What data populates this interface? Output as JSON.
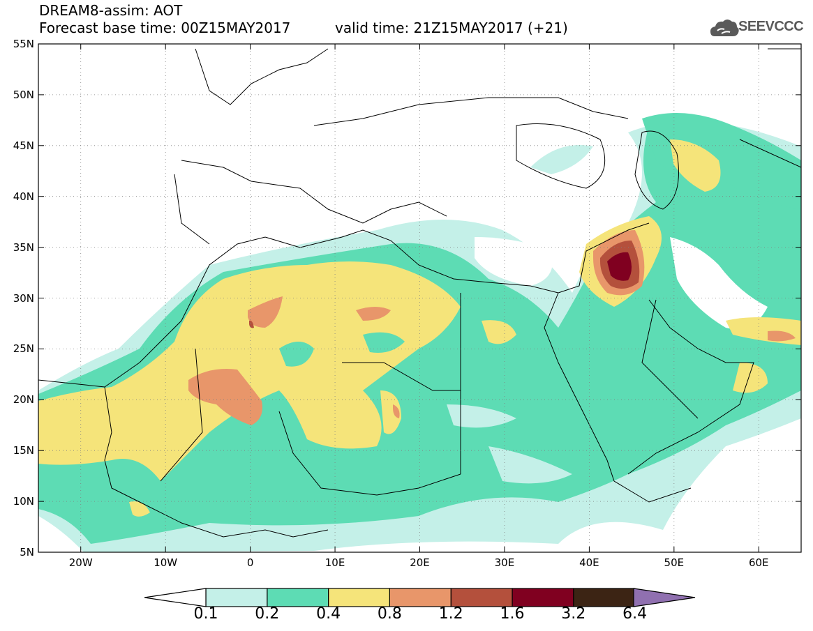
{
  "header": {
    "line1": "DREAM8-assim: AOT",
    "line2": "Forecast base time: 00Z15MAY2017",
    "line3": "valid time: 21Z15MAY2017 (+21)"
  },
  "logo": {
    "text": "SEEVCCC",
    "icon": "cloud-icon",
    "color": "#5a5a5a"
  },
  "map": {
    "lat_labels": [
      "55N",
      "50N",
      "45N",
      "40N",
      "35N",
      "30N",
      "25N",
      "20N",
      "15N",
      "10N",
      "5N"
    ],
    "lon_labels": [
      "20W",
      "10W",
      "0",
      "10E",
      "20E",
      "30E",
      "40E",
      "50E",
      "60E"
    ],
    "lat_range": [
      5,
      55
    ],
    "lon_range": [
      -25,
      65
    ],
    "grid": "dotted"
  },
  "colorbar": {
    "labels": [
      "0.1",
      "0.2",
      "0.4",
      "0.8",
      "1.2",
      "1.6",
      "3.2",
      "6.4"
    ],
    "colors": [
      "#c4f0e8",
      "#5ddcb4",
      "#f5e47a",
      "#e8966a",
      "#b4503c",
      "#800020",
      "#3c2414",
      "#9070b0"
    ]
  }
}
